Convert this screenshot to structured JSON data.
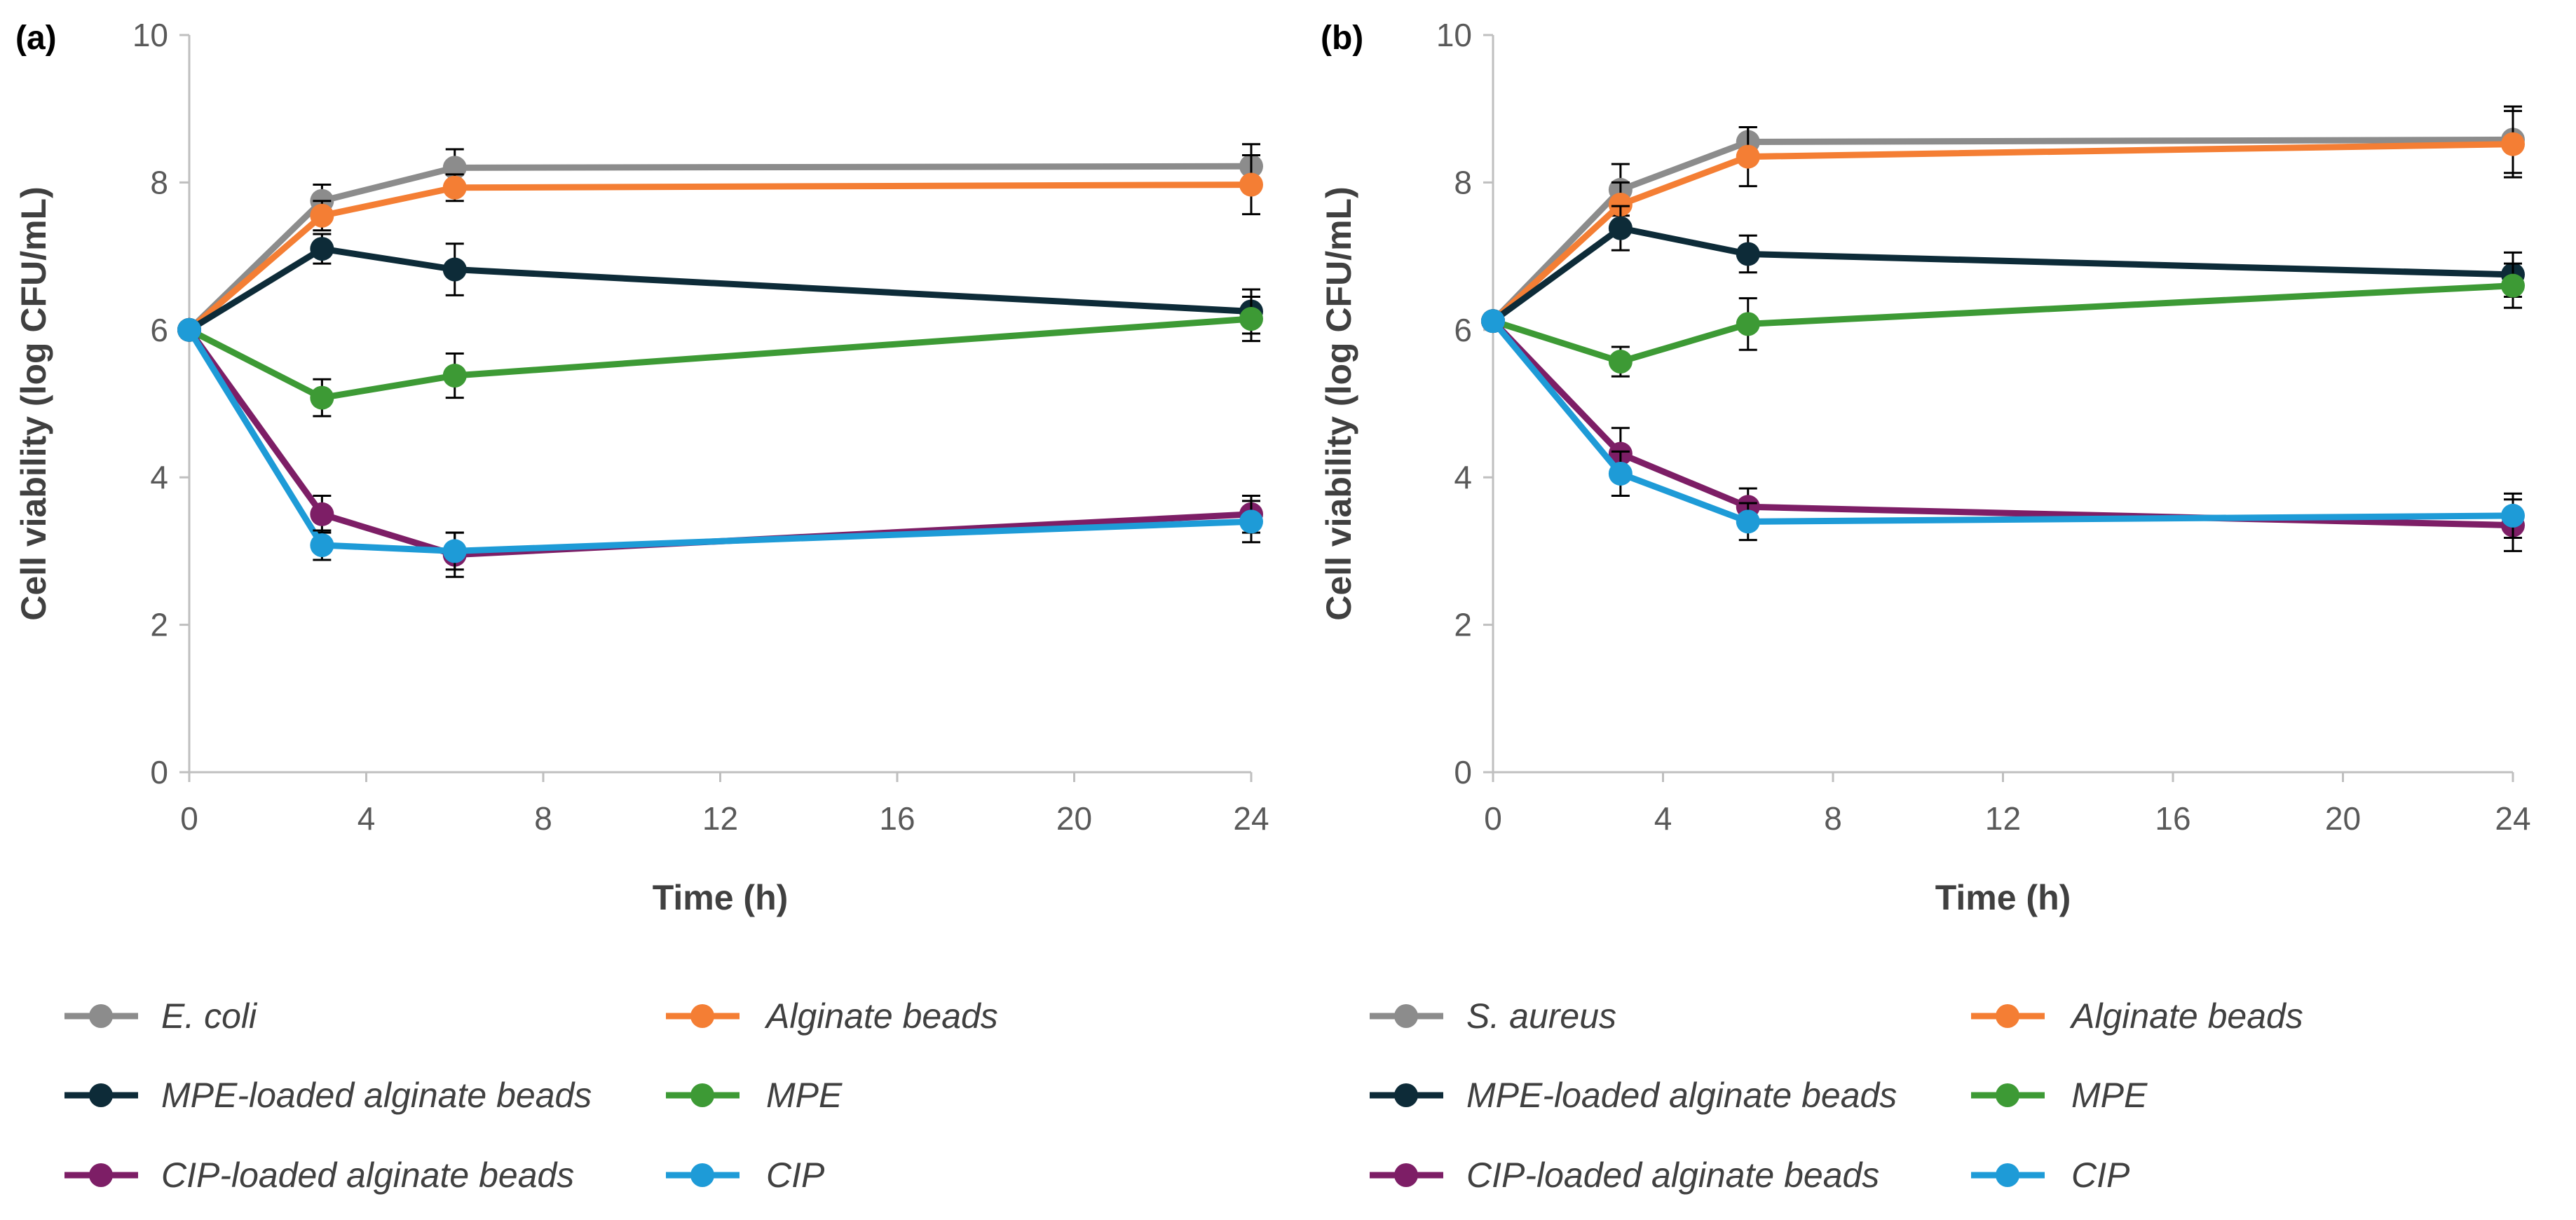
{
  "chart_data": [
    {
      "type": "line",
      "panel_label": "(a)",
      "xlabel": "Time (h)",
      "ylabel": "Cell viability (log CFU/mL)",
      "xlim": [
        0,
        24
      ],
      "ylim": [
        0,
        10
      ],
      "xticks": [
        "0",
        "4",
        "8",
        "12",
        "16",
        "20",
        "24"
      ],
      "yticks": [
        "0",
        "2",
        "4",
        "6",
        "8",
        "10"
      ],
      "x": [
        0,
        3,
        6,
        24
      ],
      "series": [
        {
          "name": "E. coli",
          "color": "#8c8c8c",
          "values": [
            6.0,
            7.75,
            8.2,
            8.22
          ],
          "errors": [
            0,
            0.22,
            0.25,
            0.3
          ]
        },
        {
          "name": "Alginate beads",
          "color": "#f47e34",
          "values": [
            6.0,
            7.55,
            7.93,
            7.97
          ],
          "errors": [
            0,
            0.2,
            0.18,
            0.4
          ]
        },
        {
          "name": "MPE-loaded alginate beads",
          "color": "#0d2b38",
          "values": [
            6.0,
            7.1,
            6.82,
            6.25
          ],
          "errors": [
            0,
            0.2,
            0.35,
            0.3
          ]
        },
        {
          "name": "MPE",
          "color": "#3d9a35",
          "values": [
            6.0,
            5.08,
            5.38,
            6.15
          ],
          "errors": [
            0,
            0.25,
            0.3,
            0.3
          ]
        },
        {
          "name": "CIP-loaded alginate beads",
          "color": "#7d1e66",
          "values": [
            6.0,
            3.5,
            2.95,
            3.5
          ],
          "errors": [
            0,
            0.25,
            0.3,
            0.25
          ]
        },
        {
          "name": "CIP",
          "color": "#1e9bd7",
          "values": [
            6.0,
            3.08,
            3.0,
            3.4
          ],
          "errors": [
            0,
            0.2,
            0.25,
            0.28
          ]
        }
      ]
    },
    {
      "type": "line",
      "panel_label": "(b)",
      "xlabel": "Time (h)",
      "ylabel": "Cell viability (log CFU/mL)",
      "xlim": [
        0,
        24
      ],
      "ylim": [
        0,
        10
      ],
      "xticks": [
        "0",
        "4",
        "8",
        "12",
        "16",
        "20",
        "24"
      ],
      "yticks": [
        "0",
        "2",
        "4",
        "6",
        "8",
        "10"
      ],
      "x": [
        0,
        3,
        6,
        24
      ],
      "series": [
        {
          "name": "S. aureus",
          "color": "#8c8c8c",
          "values": [
            6.12,
            7.9,
            8.55,
            8.58
          ],
          "errors": [
            0,
            0.35,
            0.2,
            0.45
          ]
        },
        {
          "name": "Alginate beads",
          "color": "#f47e34",
          "values": [
            6.12,
            7.7,
            8.35,
            8.52
          ],
          "errors": [
            0,
            0.3,
            0.4,
            0.45
          ]
        },
        {
          "name": "MPE-loaded alginate beads",
          "color": "#0d2b38",
          "values": [
            6.12,
            7.38,
            7.03,
            6.75
          ],
          "errors": [
            0,
            0.3,
            0.25,
            0.3
          ]
        },
        {
          "name": "MPE",
          "color": "#3d9a35",
          "values": [
            6.12,
            5.57,
            6.08,
            6.6
          ],
          "errors": [
            0,
            0.2,
            0.35,
            0.3
          ]
        },
        {
          "name": "CIP-loaded alginate beads",
          "color": "#7d1e66",
          "values": [
            6.12,
            4.32,
            3.6,
            3.35
          ],
          "errors": [
            0,
            0.35,
            0.25,
            0.35
          ]
        },
        {
          "name": "CIP",
          "color": "#1e9bd7",
          "values": [
            6.12,
            4.05,
            3.4,
            3.48
          ],
          "errors": [
            0,
            0.3,
            0.25,
            0.3
          ]
        }
      ]
    }
  ]
}
